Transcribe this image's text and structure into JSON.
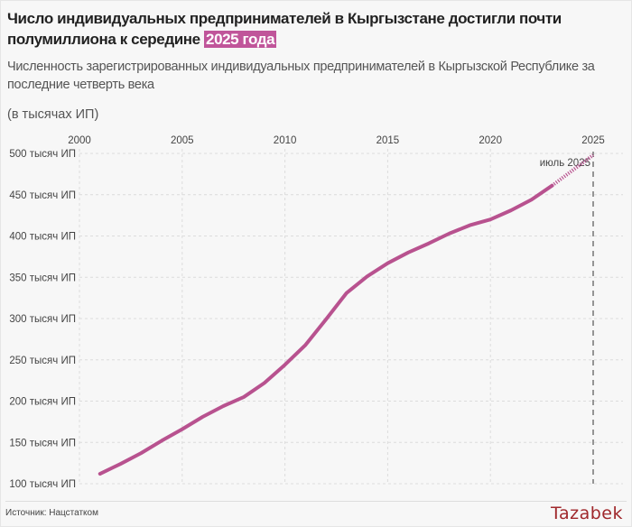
{
  "title": {
    "main": "Число индивидуальных предпринимателей в Кыргызстане достигли почти полумиллиона к середине ",
    "highlight": "2025 года"
  },
  "subtitle": "Численность зарегистрированных индивидуальных предпринимателей в Кыргызской Республике за последние четверть века",
  "unit_label": "(в тысячах ИП)",
  "source": "Источник: Нацстатком",
  "logo": "Tazabek",
  "colors": {
    "line": "#b8528f",
    "highlight": "#c0559a",
    "background": "#f7f7f7"
  },
  "chart_data": {
    "type": "line",
    "title": "Число индивидуальных предпринимателей в Кыргызстане достигли почти полумиллиона к середине 2025 года",
    "ylabel": "(в тысячах ИП)",
    "xlim": [
      2000,
      2025
    ],
    "ylim": [
      100,
      500
    ],
    "x_ticks": [
      "2000",
      "2005",
      "2010",
      "2015",
      "2020",
      "2025"
    ],
    "y_ticks": [
      "100 тысяч ИП",
      "150 тысяч ИП",
      "200 тысяч ИП",
      "250 тысяч ИП",
      "300 тысяч ИП",
      "350 тысяч ИП",
      "400 тысяч ИП",
      "450 тысяч ИП",
      "500 тысяч ИП"
    ],
    "grid": true,
    "x": [
      2001,
      2002,
      2003,
      2004,
      2005,
      2006,
      2007,
      2008,
      2009,
      2010,
      2011,
      2012,
      2013,
      2014,
      2015,
      2016,
      2017,
      2018,
      2019,
      2020,
      2021,
      2022,
      2023
    ],
    "values": [
      112,
      124,
      137,
      152,
      166,
      181,
      194,
      205,
      222,
      244,
      268,
      299,
      331,
      351,
      367,
      380,
      391,
      403,
      413,
      420,
      431,
      444,
      461
    ],
    "projection": {
      "x": [
        2023,
        2025
      ],
      "values": [
        461,
        498
      ],
      "style": "dotted"
    },
    "annotation": {
      "x": 2025,
      "text": "июль 2025",
      "marker": "dashed vertical line"
    }
  }
}
